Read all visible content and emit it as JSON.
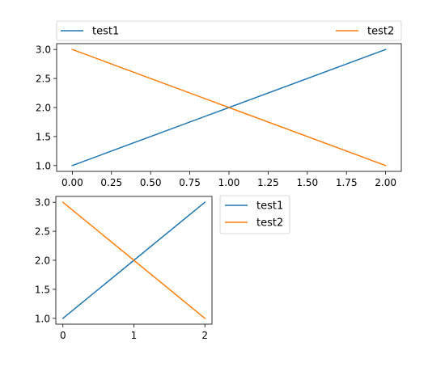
{
  "chart_data": [
    {
      "type": "line",
      "x": [
        0,
        1,
        2
      ],
      "xlim": [
        -0.1,
        2.1
      ],
      "ylim": [
        0.9,
        3.1
      ],
      "xticks": [
        0,
        0.25,
        0.5,
        0.75,
        1.0,
        1.25,
        1.5,
        1.75,
        2.0
      ],
      "xtick_labels": [
        "0.00",
        "0.25",
        "0.50",
        "0.75",
        "1.00",
        "1.25",
        "1.50",
        "1.75",
        "2.00"
      ],
      "yticks": [
        1.0,
        1.5,
        2.0,
        2.5,
        3.0
      ],
      "ytick_labels": [
        "1.0",
        "1.5",
        "2.0",
        "2.5",
        "3.0"
      ],
      "grid": false,
      "legend_position": "top, spanning full width above the plot",
      "series": [
        {
          "name": "test1",
          "values": [
            1,
            2,
            3
          ],
          "color": "#1f77b4"
        },
        {
          "name": "test2",
          "values": [
            3,
            2,
            1
          ],
          "color": "#ff7f0e"
        }
      ]
    },
    {
      "type": "line",
      "x": [
        0,
        1,
        2
      ],
      "xlim": [
        -0.1,
        2.1
      ],
      "ylim": [
        0.9,
        3.1
      ],
      "xticks": [
        0,
        1,
        2
      ],
      "xtick_labels": [
        "0",
        "1",
        "2"
      ],
      "yticks": [
        1.0,
        1.5,
        2.0,
        2.5,
        3.0
      ],
      "ytick_labels": [
        "1.0",
        "1.5",
        "2.0",
        "2.5",
        "3.0"
      ],
      "grid": false,
      "legend_position": "outside, upper right of the plot",
      "series": [
        {
          "name": "test1",
          "values": [
            1,
            2,
            3
          ],
          "color": "#1f77b4"
        },
        {
          "name": "test2",
          "values": [
            3,
            2,
            1
          ],
          "color": "#ff7f0e"
        }
      ]
    }
  ]
}
